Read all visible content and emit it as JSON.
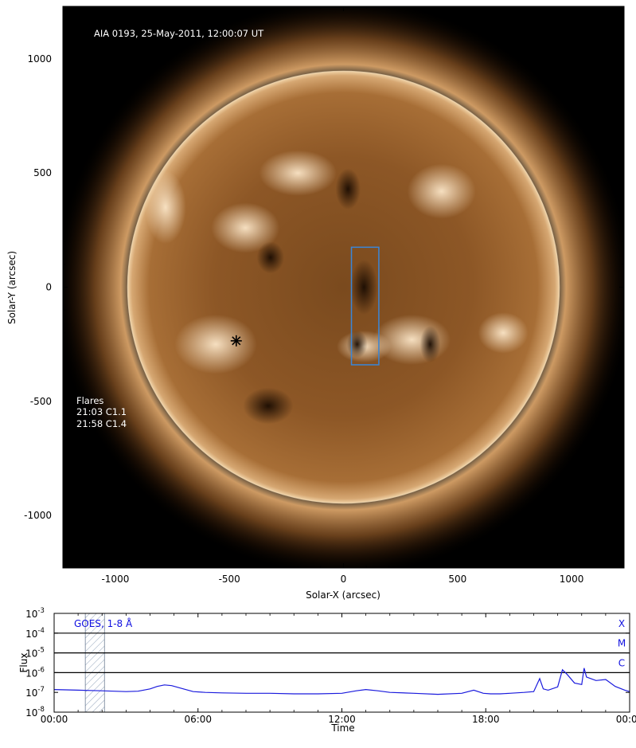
{
  "chart_data": [
    {
      "type": "heatmap",
      "title": "AIA 0193, 25-May-2011, 12:00:07 UT",
      "xlabel": "Solar-X (arcsec)",
      "ylabel": "Solar-Y (arcsec)",
      "xlim": [
        -1230,
        1230
      ],
      "ylim": [
        -1230,
        1230
      ],
      "xticks": [
        -1000,
        -500,
        0,
        500,
        1000
      ],
      "yticks": [
        -1000,
        -500,
        0,
        500,
        1000
      ],
      "xtick_labels": [
        "-1000",
        "-500",
        "0",
        "500",
        "1000"
      ],
      "ytick_labels": [
        "1000",
        "500",
        "0",
        "-500",
        "-1000"
      ],
      "solar_radius_arcsec": 946,
      "flare_marker": {
        "x": -470,
        "y": -235
      },
      "region_box": {
        "x0": 35,
        "x1": 155,
        "y0": -340,
        "y1": 175
      },
      "annotations": [
        "Flares",
        "21:03 C1.1",
        "21:58 C1.4"
      ]
    },
    {
      "type": "line",
      "title": "GOES, 1-8 Å",
      "xlabel": "Time",
      "ylabel": "Flux",
      "xlim_hours": [
        0,
        24
      ],
      "xticks": [
        0,
        6,
        12,
        18,
        24
      ],
      "xtick_labels": [
        "00:00",
        "06:00",
        "12:00",
        "18:00",
        "00:00"
      ],
      "yscale": "log",
      "ylim_exp": [
        -8,
        -3
      ],
      "ytick_exps": [
        -3,
        -4,
        -5,
        -6,
        -7,
        -8
      ],
      "ytick_bases": [
        "10",
        "10",
        "10",
        "10",
        "10",
        "10"
      ],
      "ytick_sups": [
        "-3",
        "-4",
        "-5",
        "-6",
        "-7",
        "-8"
      ],
      "class_levels": [
        {
          "name": "X",
          "exp": -4
        },
        {
          "name": "M",
          "exp": -5
        },
        {
          "name": "C",
          "exp": -6
        }
      ],
      "hatched_interval_hours": [
        1.3,
        2.1
      ],
      "series": [
        {
          "x": [
            0,
            0.5,
            1,
            1.5,
            2,
            2.5,
            3,
            3.5,
            4,
            4.3,
            4.6,
            4.9,
            5.3,
            5.8,
            6.3,
            7,
            8,
            9,
            10,
            11,
            12,
            12.6,
            13,
            13.5,
            14,
            15,
            16,
            17,
            17.5,
            17.9,
            18.2,
            18.6,
            19,
            19.6,
            20,
            20.25,
            20.4,
            20.6,
            21,
            21.2,
            21.4,
            21.7,
            22,
            22.1,
            22.2,
            22.6,
            23,
            23.4,
            23.8,
            24
          ],
          "y": [
            1.4e-07,
            1.35e-07,
            1.3e-07,
            1.25e-07,
            1.2e-07,
            1.15e-07,
            1.1e-07,
            1.15e-07,
            1.5e-07,
            2e-07,
            2.4e-07,
            2.2e-07,
            1.6e-07,
            1.1e-07,
            1e-07,
            9.5e-08,
            9e-08,
            9e-08,
            8.5e-08,
            8.5e-08,
            9e-08,
            1.2e-07,
            1.4e-07,
            1.2e-07,
            1e-07,
            9e-08,
            8e-08,
            9e-08,
            1.3e-07,
            9e-08,
            8.5e-08,
            8.5e-08,
            9e-08,
            1e-07,
            1.1e-07,
            5e-07,
            1.5e-07,
            1.3e-07,
            1.9e-07,
            1.4e-06,
            8e-07,
            3e-07,
            2.5e-07,
            1.7e-06,
            6e-07,
            4e-07,
            4.5e-07,
            2e-07,
            1.3e-07,
            1.1e-07
          ]
        }
      ]
    }
  ]
}
